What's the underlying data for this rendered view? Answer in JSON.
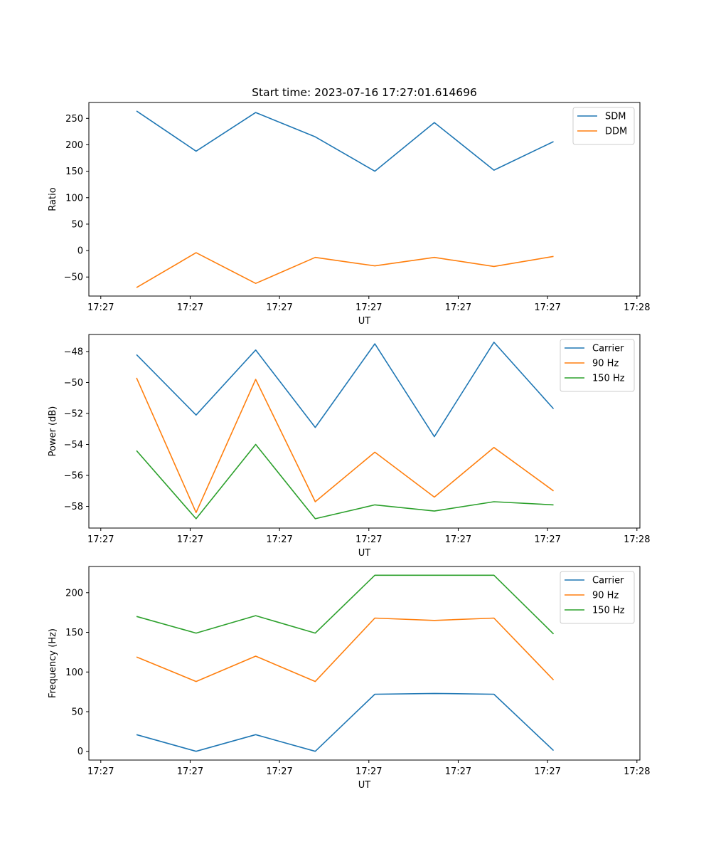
{
  "chart_data": [
    {
      "type": "line",
      "title": "Start time: 2023-07-16 17:27:01.614696",
      "xlabel": "UT",
      "ylabel": "Ratio",
      "x": [
        1,
        2,
        3,
        4,
        5,
        6,
        7,
        8
      ],
      "xlim": [
        0.2,
        9.45
      ],
      "x_ticks": [
        0.4,
        1.9,
        3.4,
        4.9,
        6.4,
        7.9,
        9.4
      ],
      "x_tick_labels": [
        "17:27",
        "17:27",
        "17:27",
        "17:27",
        "17:27",
        "17:27",
        "17:28"
      ],
      "ylim": [
        -86,
        280
      ],
      "y_ticks": [
        -50,
        0,
        50,
        100,
        150,
        200,
        250
      ],
      "y_tick_labels": [
        "−50",
        "0",
        "50",
        "100",
        "150",
        "200",
        "250"
      ],
      "legend_position": "top-right",
      "series": [
        {
          "name": "SDM",
          "color": "#1f77b4",
          "values": [
            264,
            188,
            261,
            215,
            150,
            242,
            152,
            206
          ]
        },
        {
          "name": "DDM",
          "color": "#ff7f0e",
          "values": [
            -70,
            -4,
            -62,
            -13,
            -29,
            -13,
            -30,
            -11
          ]
        }
      ]
    },
    {
      "type": "line",
      "title": "",
      "xlabel": "UT",
      "ylabel": "Power (dB)",
      "x": [
        1,
        2,
        3,
        4,
        5,
        6,
        7,
        8
      ],
      "xlim": [
        0.2,
        9.45
      ],
      "x_ticks": [
        0.4,
        1.9,
        3.4,
        4.9,
        6.4,
        7.9,
        9.4
      ],
      "x_tick_labels": [
        "17:27",
        "17:27",
        "17:27",
        "17:27",
        "17:27",
        "17:27",
        "17:28"
      ],
      "ylim": [
        -59.4,
        -46.9
      ],
      "y_ticks": [
        -58,
        -56,
        -54,
        -52,
        -50,
        -48
      ],
      "y_tick_labels": [
        "−58",
        "−56",
        "−54",
        "−52",
        "−50",
        "−48"
      ],
      "legend_position": "top-right",
      "series": [
        {
          "name": "Carrier",
          "color": "#1f77b4",
          "values": [
            -48.2,
            -52.1,
            -47.9,
            -52.9,
            -47.5,
            -53.5,
            -47.4,
            -51.7
          ]
        },
        {
          "name": "90 Hz",
          "color": "#ff7f0e",
          "values": [
            -49.7,
            -58.4,
            -49.8,
            -57.7,
            -54.5,
            -57.4,
            -54.2,
            -57.0
          ]
        },
        {
          "name": "150 Hz",
          "color": "#2ca02c",
          "values": [
            -54.4,
            -58.8,
            -54.0,
            -58.8,
            -57.9,
            -58.3,
            -57.7,
            -57.9
          ]
        }
      ]
    },
    {
      "type": "line",
      "title": "",
      "xlabel": "UT",
      "ylabel": "Frequency (Hz)",
      "x": [
        1,
        2,
        3,
        4,
        5,
        6,
        7,
        8
      ],
      "xlim": [
        0.2,
        9.45
      ],
      "x_ticks": [
        0.4,
        1.9,
        3.4,
        4.9,
        6.4,
        7.9,
        9.4
      ],
      "x_tick_labels": [
        "17:27",
        "17:27",
        "17:27",
        "17:27",
        "17:27",
        "17:27",
        "17:28"
      ],
      "ylim": [
        -11,
        233
      ],
      "y_ticks": [
        0,
        50,
        100,
        150,
        200
      ],
      "y_tick_labels": [
        "0",
        "50",
        "100",
        "150",
        "200"
      ],
      "legend_position": "top-right",
      "series": [
        {
          "name": "Carrier",
          "color": "#1f77b4",
          "values": [
            21,
            0,
            21,
            0,
            72,
            73,
            72,
            1
          ]
        },
        {
          "name": "90 Hz",
          "color": "#ff7f0e",
          "values": [
            119,
            88,
            120,
            88,
            168,
            165,
            168,
            90
          ]
        },
        {
          "name": "150 Hz",
          "color": "#2ca02c",
          "values": [
            170,
            149,
            171,
            149,
            222,
            222,
            222,
            148
          ]
        }
      ]
    }
  ]
}
